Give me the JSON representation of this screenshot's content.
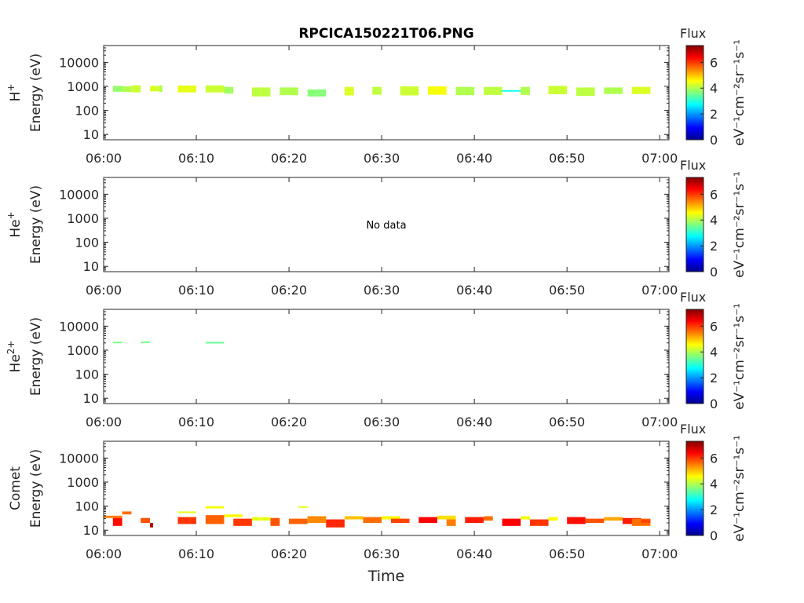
{
  "figure_title": "RPCICA150221T06.PNG",
  "x_axis_label": "Time",
  "colorbar": {
    "label": "Flux",
    "unit_label": "eV⁻¹cm⁻²sr⁻¹s⁻¹",
    "ticks": [
      "0",
      "2",
      "4",
      "6"
    ],
    "range": [
      0,
      7.3
    ],
    "colormap": "jet"
  },
  "chart_data": [
    {
      "type": "heatmap",
      "species": "H",
      "species_sup": "+",
      "ylabel": "Energy (eV)",
      "yscale": "log",
      "ylim": [
        6,
        50000
      ],
      "yticks": [
        "10",
        "100",
        "1000",
        "10000"
      ],
      "xlim": [
        "06:00",
        "07:01"
      ],
      "xticks": [
        "06:00",
        "06:10",
        "06:20",
        "06:30",
        "06:40",
        "06:50",
        "07:00"
      ],
      "no_data": "",
      "cells": [
        {
          "t": [
            "06:01",
            "06:02"
          ],
          "e": [
            600,
            1050
          ],
          "v": 3.8
        },
        {
          "t": [
            "06:02",
            "06:03"
          ],
          "e": [
            580,
            1000
          ],
          "v": 4.0
        },
        {
          "t": [
            "06:03",
            "06:04"
          ],
          "e": [
            560,
            1100
          ],
          "v": 4.2
        },
        {
          "t": [
            "06:05",
            "06:06"
          ],
          "e": [
            620,
            1050
          ],
          "v": 4.3
        },
        {
          "t": [
            "06:06",
            "06:06"
          ],
          "e": [
            580,
            1100
          ],
          "v": 4.0
        },
        {
          "t": [
            "06:08",
            "06:10"
          ],
          "e": [
            560,
            1080
          ],
          "v": 4.4
        },
        {
          "t": [
            "06:11",
            "06:13"
          ],
          "e": [
            560,
            1100
          ],
          "v": 4.2
        },
        {
          "t": [
            "06:13",
            "06:14"
          ],
          "e": [
            500,
            950
          ],
          "v": 3.9
        },
        {
          "t": [
            "06:16",
            "06:18"
          ],
          "e": [
            380,
            900
          ],
          "v": 4.1
        },
        {
          "t": [
            "06:19",
            "06:21"
          ],
          "e": [
            430,
            900
          ],
          "v": 4.0
        },
        {
          "t": [
            "06:22",
            "06:24"
          ],
          "e": [
            380,
            750
          ],
          "v": 3.7
        },
        {
          "t": [
            "06:26",
            "06:27"
          ],
          "e": [
            420,
            950
          ],
          "v": 4.3
        },
        {
          "t": [
            "06:29",
            "06:30"
          ],
          "e": [
            450,
            950
          ],
          "v": 4.1
        },
        {
          "t": [
            "06:32",
            "06:34"
          ],
          "e": [
            420,
            1000
          ],
          "v": 4.2
        },
        {
          "t": [
            "06:35",
            "06:37"
          ],
          "e": [
            450,
            1000
          ],
          "v": 4.5
        },
        {
          "t": [
            "06:38",
            "06:40"
          ],
          "e": [
            430,
            950
          ],
          "v": 4.0
        },
        {
          "t": [
            "06:41",
            "06:43"
          ],
          "e": [
            440,
            950
          ],
          "v": 4.1
        },
        {
          "t": [
            "06:43",
            "06:45"
          ],
          "e": [
            600,
            700
          ],
          "v": 2.9
        },
        {
          "t": [
            "06:45",
            "06:46"
          ],
          "e": [
            440,
            950
          ],
          "v": 4.0
        },
        {
          "t": [
            "06:48",
            "06:50"
          ],
          "e": [
            470,
            1050
          ],
          "v": 4.2
        },
        {
          "t": [
            "06:51",
            "06:53"
          ],
          "e": [
            400,
            900
          ],
          "v": 4.1
        },
        {
          "t": [
            "06:54",
            "06:56"
          ],
          "e": [
            480,
            900
          ],
          "v": 4.0
        },
        {
          "t": [
            "06:57",
            "06:59"
          ],
          "e": [
            480,
            950
          ],
          "v": 4.3
        }
      ]
    },
    {
      "type": "heatmap",
      "species": "He",
      "species_sup": "+",
      "ylabel": "Energy (eV)",
      "yscale": "log",
      "ylim": [
        6,
        50000
      ],
      "yticks": [
        "10",
        "100",
        "1000",
        "10000"
      ],
      "xlim": [
        "06:00",
        "07:01"
      ],
      "xticks": [
        "06:00",
        "06:10",
        "06:20",
        "06:30",
        "06:40",
        "06:50",
        "07:00"
      ],
      "no_data": "No data",
      "cells": []
    },
    {
      "type": "heatmap",
      "species": "He",
      "species_sup": "2+",
      "ylabel": "Energy (eV)",
      "yscale": "log",
      "ylim": [
        6,
        50000
      ],
      "yticks": [
        "10",
        "100",
        "1000",
        "10000"
      ],
      "xlim": [
        "06:00",
        "07:01"
      ],
      "xticks": [
        "06:00",
        "06:10",
        "06:20",
        "06:30",
        "06:40",
        "06:50",
        "07:00"
      ],
      "no_data": "",
      "cells": [
        {
          "t": [
            "06:01",
            "06:02"
          ],
          "e": [
            1950,
            2250
          ],
          "v": 3.6
        },
        {
          "t": [
            "06:04",
            "06:05"
          ],
          "e": [
            2000,
            2300
          ],
          "v": 3.6
        },
        {
          "t": [
            "06:11",
            "06:13"
          ],
          "e": [
            1950,
            2200
          ],
          "v": 3.5
        }
      ]
    },
    {
      "type": "heatmap",
      "species": "Comet",
      "species_sup": "",
      "ylabel": "Energy (eV)",
      "yscale": "log",
      "ylim": [
        6,
        50000
      ],
      "yticks": [
        "10",
        "100",
        "1000",
        "10000"
      ],
      "xlim": [
        "06:00",
        "07:01"
      ],
      "xticks": [
        "06:00",
        "06:10",
        "06:20",
        "06:30",
        "06:40",
        "06:50",
        "07:00"
      ],
      "no_data": "",
      "cells": [
        {
          "t": [
            "06:00",
            "06:02"
          ],
          "e": [
            32,
            40
          ],
          "v": 5.5
        },
        {
          "t": [
            "06:01",
            "06:02"
          ],
          "e": [
            15,
            32
          ],
          "v": 6.3
        },
        {
          "t": [
            "06:02",
            "06:03"
          ],
          "e": [
            45,
            60
          ],
          "v": 5.6
        },
        {
          "t": [
            "06:04",
            "06:05"
          ],
          "e": [
            20,
            32
          ],
          "v": 5.8
        },
        {
          "t": [
            "06:05",
            "06:05"
          ],
          "e": [
            13,
            20
          ],
          "v": 6.9
        },
        {
          "t": [
            "06:08",
            "06:10"
          ],
          "e": [
            18,
            35
          ],
          "v": 6.0
        },
        {
          "t": [
            "06:08",
            "06:10"
          ],
          "e": [
            55,
            60
          ],
          "v": 4.4
        },
        {
          "t": [
            "06:11",
            "06:13"
          ],
          "e": [
            18,
            42
          ],
          "v": 5.7
        },
        {
          "t": [
            "06:11",
            "06:13"
          ],
          "e": [
            80,
            100
          ],
          "v": 4.5
        },
        {
          "t": [
            "06:13",
            "06:15"
          ],
          "e": [
            35,
            45
          ],
          "v": 4.6
        },
        {
          "t": [
            "06:14",
            "06:16"
          ],
          "e": [
            15,
            30
          ],
          "v": 6.0
        },
        {
          "t": [
            "06:16",
            "06:18"
          ],
          "e": [
            25,
            35
          ],
          "v": 4.4
        },
        {
          "t": [
            "06:18",
            "06:19"
          ],
          "e": [
            15,
            32
          ],
          "v": 5.8
        },
        {
          "t": [
            "06:20",
            "06:22"
          ],
          "e": [
            18,
            30
          ],
          "v": 5.7
        },
        {
          "t": [
            "06:21",
            "06:22"
          ],
          "e": [
            85,
            100
          ],
          "v": 4.4
        },
        {
          "t": [
            "06:22",
            "06:24"
          ],
          "e": [
            20,
            38
          ],
          "v": 5.4
        },
        {
          "t": [
            "06:24",
            "06:26"
          ],
          "e": [
            13,
            28
          ],
          "v": 6.1
        },
        {
          "t": [
            "06:26",
            "06:28"
          ],
          "e": [
            28,
            38
          ],
          "v": 5.0
        },
        {
          "t": [
            "06:28",
            "06:30"
          ],
          "e": [
            20,
            35
          ],
          "v": 5.6
        },
        {
          "t": [
            "06:30",
            "06:32"
          ],
          "e": [
            28,
            38
          ],
          "v": 4.6
        },
        {
          "t": [
            "06:31",
            "06:33"
          ],
          "e": [
            20,
            30
          ],
          "v": 5.9
        },
        {
          "t": [
            "06:34",
            "06:36"
          ],
          "e": [
            20,
            35
          ],
          "v": 6.4
        },
        {
          "t": [
            "06:36",
            "06:38"
          ],
          "e": [
            28,
            40
          ],
          "v": 4.8
        },
        {
          "t": [
            "06:37",
            "06:38"
          ],
          "e": [
            15,
            28
          ],
          "v": 5.5
        },
        {
          "t": [
            "06:39",
            "06:41"
          ],
          "e": [
            20,
            35
          ],
          "v": 6.2
        },
        {
          "t": [
            "06:41",
            "06:42"
          ],
          "e": [
            25,
            38
          ],
          "v": 5.6
        },
        {
          "t": [
            "06:43",
            "06:45"
          ],
          "e": [
            15,
            30
          ],
          "v": 6.4
        },
        {
          "t": [
            "06:45",
            "06:46"
          ],
          "e": [
            28,
            38
          ],
          "v": 4.5
        },
        {
          "t": [
            "06:46",
            "06:48"
          ],
          "e": [
            15,
            28
          ],
          "v": 6.0
        },
        {
          "t": [
            "06:48",
            "06:49"
          ],
          "e": [
            25,
            35
          ],
          "v": 4.6
        },
        {
          "t": [
            "06:50",
            "06:52"
          ],
          "e": [
            18,
            35
          ],
          "v": 6.3
        },
        {
          "t": [
            "06:52",
            "06:54"
          ],
          "e": [
            20,
            30
          ],
          "v": 5.8
        },
        {
          "t": [
            "06:54",
            "06:56"
          ],
          "e": [
            25,
            35
          ],
          "v": 5.2
        },
        {
          "t": [
            "06:56",
            "06:58"
          ],
          "e": [
            18,
            32
          ],
          "v": 6.2
        },
        {
          "t": [
            "06:57",
            "06:59"
          ],
          "e": [
            15,
            30
          ],
          "v": 5.6
        },
        {
          "t": [
            "06:58",
            "06:59"
          ],
          "e": [
            20,
            28
          ],
          "v": 5.9
        }
      ]
    }
  ]
}
